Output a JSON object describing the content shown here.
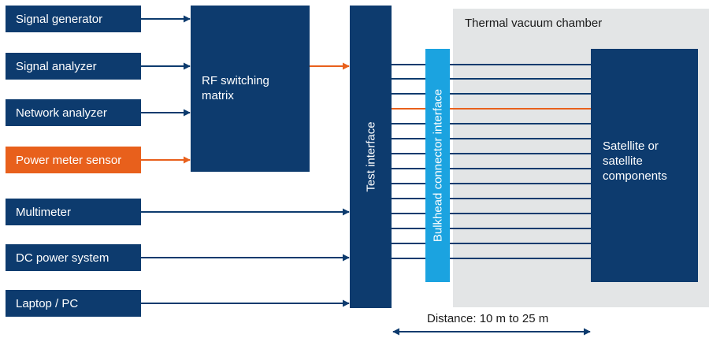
{
  "sources": [
    {
      "label": "Signal generator",
      "color": "#0d3b6e"
    },
    {
      "label": "Signal analyzer",
      "color": "#0d3b6e"
    },
    {
      "label": "Network analyzer",
      "color": "#0d3b6e"
    },
    {
      "label": "Power meter sensor",
      "color": "#e8601c"
    },
    {
      "label": "Multimeter",
      "color": "#0d3b6e"
    },
    {
      "label": "DC power system",
      "color": "#0d3b6e"
    },
    {
      "label": "Laptop / PC",
      "color": "#0d3b6e"
    }
  ],
  "rf_matrix": {
    "label": "RF switching matrix"
  },
  "test_interface": {
    "label": "Test interface"
  },
  "bulkhead": {
    "label": "Bulkhead connector interface",
    "color": "#1ba3e0"
  },
  "chamber": {
    "label": "Thermal vacuum chamber"
  },
  "satellite": {
    "label": "Satellite or satellite components"
  },
  "distance": {
    "label": "Distance: 10 m to 25 m"
  },
  "colors": {
    "navy": "#0d3b6e",
    "orange": "#e8601c",
    "chamber_bg": "#e3e5e6",
    "bulkhead": "#1ba3e0"
  }
}
